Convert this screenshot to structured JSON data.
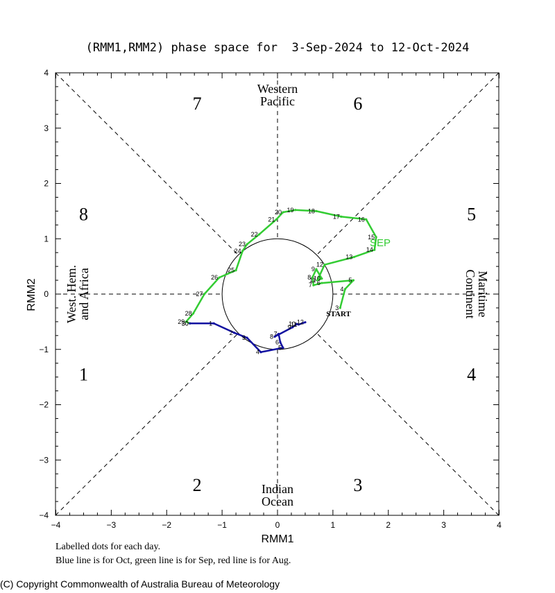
{
  "chart_data": {
    "type": "line",
    "title": "(RMM1,RMM2) phase space for  3-Sep-2024 to 12-Oct-2024",
    "xlabel": "RMM1",
    "ylabel": "RMM2",
    "xlim": [
      -4,
      4
    ],
    "ylim": [
      -4,
      4
    ],
    "xticks": [
      "−4",
      "−3",
      "−2",
      "−1",
      "0",
      "1",
      "2",
      "3",
      "4"
    ],
    "yticks": [
      "−4",
      "−3",
      "−2",
      "−1",
      "0",
      "1",
      "2",
      "3",
      "4"
    ],
    "grid": false,
    "unit_circle": true,
    "phase_numbers": [
      {
        "label": "7",
        "x": -1.45,
        "y": 3.45
      },
      {
        "label": "6",
        "x": 1.45,
        "y": 3.45
      },
      {
        "label": "8",
        "x": -3.5,
        "y": 1.45
      },
      {
        "label": "5",
        "x": 3.5,
        "y": 1.45
      },
      {
        "label": "1",
        "x": -3.5,
        "y": -1.45
      },
      {
        "label": "4",
        "x": 3.5,
        "y": -1.45
      },
      {
        "label": "2",
        "x": -1.45,
        "y": -3.45
      },
      {
        "label": "3",
        "x": 1.45,
        "y": -3.45
      }
    ],
    "regions": {
      "top": [
        "Western",
        "Pacific"
      ],
      "bottom": [
        "Indian",
        "Ocean"
      ],
      "left": [
        "West. Hem.",
        "and Africa"
      ],
      "right": [
        "Maritime",
        "Continent"
      ]
    },
    "start_label": "START",
    "month_label": {
      "text": "SEP",
      "color": "#33cc33"
    },
    "series": [
      {
        "name": "Sep",
        "color": "#33cc33",
        "points": [
          {
            "d": "3",
            "x": 1.13,
            "y": -0.25
          },
          {
            "d": "4",
            "x": 1.22,
            "y": 0.09
          },
          {
            "d": "5",
            "x": 1.37,
            "y": 0.25
          },
          {
            "d": "6",
            "x": 0.8,
            "y": 0.2
          },
          {
            "d": "7",
            "x": 0.65,
            "y": 0.16
          },
          {
            "d": "8",
            "x": 0.63,
            "y": 0.3
          },
          {
            "d": "9",
            "x": 0.7,
            "y": 0.45
          },
          {
            "d": "10",
            "x": 0.8,
            "y": 0.28
          },
          {
            "d": "11",
            "x": 0.72,
            "y": 0.25
          },
          {
            "d": "12",
            "x": 0.85,
            "y": 0.53
          },
          {
            "d": "13",
            "x": 1.38,
            "y": 0.67
          },
          {
            "d": "14",
            "x": 1.75,
            "y": 0.8
          },
          {
            "d": "15",
            "x": 1.78,
            "y": 1.03
          },
          {
            "d": "16",
            "x": 1.6,
            "y": 1.35
          },
          {
            "d": "17",
            "x": 1.15,
            "y": 1.4
          },
          {
            "d": "18",
            "x": 0.7,
            "y": 1.5
          },
          {
            "d": "19",
            "x": 0.32,
            "y": 1.52
          },
          {
            "d": "20",
            "x": 0.1,
            "y": 1.48
          },
          {
            "d": "21",
            "x": -0.02,
            "y": 1.35
          },
          {
            "d": "22",
            "x": -0.33,
            "y": 1.08
          },
          {
            "d": "23",
            "x": -0.55,
            "y": 0.9
          },
          {
            "d": "24",
            "x": -0.63,
            "y": 0.78
          },
          {
            "d": "25",
            "x": -0.75,
            "y": 0.43
          },
          {
            "d": "26",
            "x": -1.05,
            "y": 0.3
          },
          {
            "d": "27",
            "x": -1.32,
            "y": 0.0
          },
          {
            "d": "28",
            "x": -1.52,
            "y": -0.35
          },
          {
            "d": "29",
            "x": -1.65,
            "y": -0.5
          },
          {
            "d": "30",
            "x": -1.58,
            "y": -0.53
          }
        ]
      },
      {
        "name": "Oct",
        "color": "#1010a0",
        "points": [
          {
            "d": "30",
            "x": -1.58,
            "y": -0.53
          },
          {
            "d": "1",
            "x": -1.15,
            "y": -0.53
          },
          {
            "d": "2",
            "x": -0.78,
            "y": -0.7
          },
          {
            "d": "3",
            "x": -0.55,
            "y": -0.79
          },
          {
            "d": "4",
            "x": -0.3,
            "y": -1.05
          },
          {
            "d": "5",
            "x": 0.1,
            "y": -0.97
          },
          {
            "d": "6",
            "x": 0.05,
            "y": -0.87
          },
          {
            "d": "7",
            "x": 0.02,
            "y": -0.72
          },
          {
            "d": "8",
            "x": -0.05,
            "y": -0.77
          },
          {
            "d": "9",
            "x": 0.27,
            "y": -0.6
          },
          {
            "d": "10",
            "x": 0.35,
            "y": -0.54
          },
          {
            "d": "11",
            "x": 0.38,
            "y": -0.55
          },
          {
            "d": "12",
            "x": 0.5,
            "y": -0.51
          }
        ]
      }
    ]
  },
  "notes": [
    "Labelled dots for each day.",
    "Blue line is for Oct, green line is for Sep, red line is for Aug."
  ],
  "copyright": "(C) Copyright Commonwealth of Australia Bureau of Meteorology"
}
